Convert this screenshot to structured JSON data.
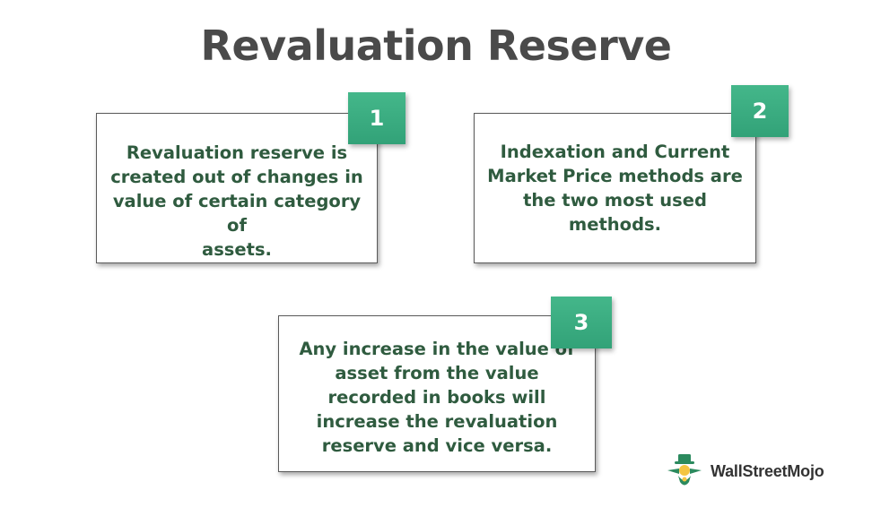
{
  "title": "Revaluation Reserve",
  "cards": [
    {
      "number": "1",
      "lines": [
        "Revaluation reserve is",
        "created out of changes in",
        "value of certain category of",
        "assets."
      ]
    },
    {
      "number": "2",
      "lines": [
        "Indexation and Current",
        "Market Price methods are",
        "the two most used",
        "methods."
      ]
    },
    {
      "number": "3",
      "lines": [
        "Any increase in the value of",
        "asset from the value",
        "recorded in books will",
        "increase the revaluation",
        "reserve and vice versa."
      ]
    }
  ],
  "logo": {
    "text": "WallStreetMojo",
    "icon": "wallstreetmojo-logo-icon"
  },
  "colors": {
    "title": "#4a4a4a",
    "card_text": "#2f5b3f",
    "badge": "#3aab80",
    "border": "#5a5a5a"
  }
}
